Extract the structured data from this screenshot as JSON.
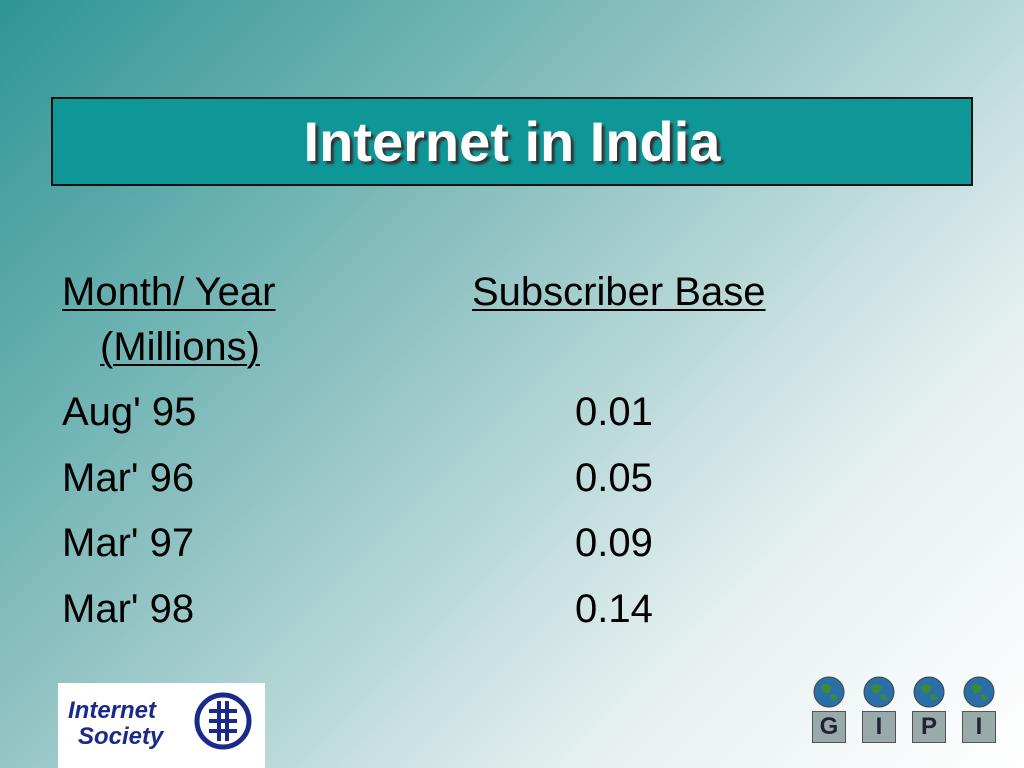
{
  "header": {
    "title": "Internet in India"
  },
  "table": {
    "columns": [
      "Month/ Year",
      "Subscriber Base"
    ],
    "unit": "(Millions)",
    "rows": [
      [
        "Aug' 95",
        0.01
      ],
      [
        "Mar' 96",
        0.05
      ],
      [
        "Mar' 97",
        0.09
      ],
      [
        "Mar' 98",
        0.14
      ]
    ]
  },
  "logos": {
    "isoc": [
      "Internet",
      "Society"
    ],
    "gipi": [
      "G",
      "I",
      "P",
      "I"
    ]
  }
}
